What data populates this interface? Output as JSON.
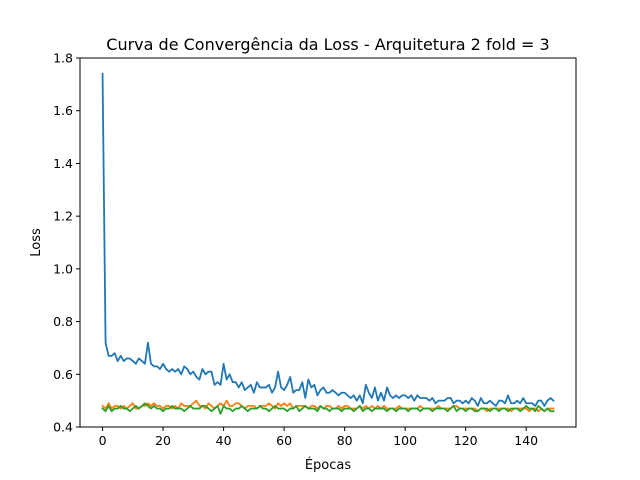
{
  "chart_data": {
    "type": "line",
    "title": "Curva de Convergência da Loss - Arquitetura 2 fold = 3",
    "xlabel": "Épocas",
    "ylabel": "Loss",
    "xlim": [
      -7.45,
      156.45
    ],
    "ylim": [
      0.4,
      1.8
    ],
    "xticks": [
      0,
      20,
      40,
      60,
      80,
      100,
      120,
      140
    ],
    "yticks": [
      0.4,
      0.6,
      0.8,
      1.0,
      1.2,
      1.4,
      1.6,
      1.8
    ],
    "xtick_labels": [
      "0",
      "20",
      "40",
      "60",
      "80",
      "100",
      "120",
      "140"
    ],
    "ytick_labels": [
      "0.4",
      "0.6",
      "0.8",
      "1.0",
      "1.2",
      "1.4",
      "1.6",
      "1.8"
    ],
    "grid": false,
    "legend": "none",
    "series": [
      {
        "color": "#1f77b4",
        "x": [
          0,
          1,
          2,
          3,
          4,
          5,
          6,
          7,
          8,
          9,
          10,
          11,
          12,
          13,
          14,
          15,
          16,
          17,
          18,
          19,
          20,
          21,
          22,
          23,
          24,
          25,
          26,
          27,
          28,
          29,
          30,
          31,
          32,
          33,
          34,
          35,
          36,
          37,
          38,
          39,
          40,
          41,
          42,
          43,
          44,
          45,
          46,
          47,
          48,
          49,
          50,
          51,
          52,
          53,
          54,
          55,
          56,
          57,
          58,
          59,
          60,
          61,
          62,
          63,
          64,
          65,
          66,
          67,
          68,
          69,
          70,
          71,
          72,
          73,
          74,
          75,
          76,
          77,
          78,
          79,
          80,
          81,
          82,
          83,
          84,
          85,
          86,
          87,
          88,
          89,
          90,
          91,
          92,
          93,
          94,
          95,
          96,
          97,
          98,
          99,
          100,
          101,
          102,
          103,
          104,
          105,
          106,
          107,
          108,
          109,
          110,
          111,
          112,
          113,
          114,
          115,
          116,
          117,
          118,
          119,
          120,
          121,
          122,
          123,
          124,
          125,
          126,
          127,
          128,
          129,
          130,
          131,
          132,
          133,
          134,
          135,
          136,
          137,
          138,
          139,
          140,
          141,
          142,
          143,
          144,
          145,
          146,
          147,
          148,
          149
        ],
        "y": [
          1.74,
          0.72,
          0.67,
          0.67,
          0.68,
          0.65,
          0.67,
          0.65,
          0.66,
          0.66,
          0.65,
          0.64,
          0.66,
          0.65,
          0.64,
          0.72,
          0.64,
          0.63,
          0.63,
          0.62,
          0.64,
          0.62,
          0.61,
          0.62,
          0.61,
          0.62,
          0.6,
          0.63,
          0.62,
          0.6,
          0.61,
          0.59,
          0.58,
          0.62,
          0.6,
          0.61,
          0.61,
          0.56,
          0.57,
          0.56,
          0.64,
          0.58,
          0.6,
          0.57,
          0.57,
          0.55,
          0.57,
          0.54,
          0.55,
          0.56,
          0.53,
          0.57,
          0.55,
          0.55,
          0.55,
          0.56,
          0.53,
          0.55,
          0.61,
          0.55,
          0.54,
          0.56,
          0.59,
          0.53,
          0.54,
          0.54,
          0.57,
          0.51,
          0.58,
          0.55,
          0.56,
          0.52,
          0.54,
          0.55,
          0.53,
          0.53,
          0.54,
          0.53,
          0.52,
          0.53,
          0.53,
          0.52,
          0.51,
          0.52,
          0.5,
          0.52,
          0.49,
          0.56,
          0.53,
          0.51,
          0.55,
          0.5,
          0.53,
          0.5,
          0.55,
          0.52,
          0.51,
          0.52,
          0.51,
          0.52,
          0.52,
          0.51,
          0.52,
          0.5,
          0.52,
          0.51,
          0.51,
          0.51,
          0.5,
          0.51,
          0.49,
          0.5,
          0.5,
          0.5,
          0.51,
          0.51,
          0.49,
          0.5,
          0.5,
          0.49,
          0.5,
          0.49,
          0.51,
          0.5,
          0.48,
          0.51,
          0.49,
          0.49,
          0.5,
          0.49,
          0.48,
          0.5,
          0.5,
          0.49,
          0.52,
          0.49,
          0.49,
          0.5,
          0.49,
          0.51,
          0.49,
          0.49,
          0.49,
          0.48,
          0.5,
          0.5,
          0.48,
          0.5,
          0.51,
          0.5
        ]
      },
      {
        "color": "#ff7f0e",
        "x": [
          0,
          1,
          2,
          3,
          4,
          5,
          6,
          7,
          8,
          9,
          10,
          11,
          12,
          13,
          14,
          15,
          16,
          17,
          18,
          19,
          20,
          21,
          22,
          23,
          24,
          25,
          26,
          27,
          28,
          29,
          30,
          31,
          32,
          33,
          34,
          35,
          36,
          37,
          38,
          39,
          40,
          41,
          42,
          43,
          44,
          45,
          46,
          47,
          48,
          49,
          50,
          51,
          52,
          53,
          54,
          55,
          56,
          57,
          58,
          59,
          60,
          61,
          62,
          63,
          64,
          65,
          66,
          67,
          68,
          69,
          70,
          71,
          72,
          73,
          74,
          75,
          76,
          77,
          78,
          79,
          80,
          81,
          82,
          83,
          84,
          85,
          86,
          87,
          88,
          89,
          90,
          91,
          92,
          93,
          94,
          95,
          96,
          97,
          98,
          99,
          100,
          101,
          102,
          103,
          104,
          105,
          106,
          107,
          108,
          109,
          110,
          111,
          112,
          113,
          114,
          115,
          116,
          117,
          118,
          119,
          120,
          121,
          122,
          123,
          124,
          125,
          126,
          127,
          128,
          129,
          130,
          131,
          132,
          133,
          134,
          135,
          136,
          137,
          138,
          139,
          140,
          141,
          142,
          143,
          144,
          145,
          146,
          147,
          148,
          149
        ],
        "y": [
          0.48,
          0.47,
          0.49,
          0.47,
          0.48,
          0.48,
          0.47,
          0.48,
          0.47,
          0.48,
          0.49,
          0.47,
          0.47,
          0.48,
          0.48,
          0.49,
          0.48,
          0.49,
          0.48,
          0.48,
          0.47,
          0.48,
          0.48,
          0.47,
          0.48,
          0.47,
          0.49,
          0.48,
          0.48,
          0.48,
          0.49,
          0.5,
          0.48,
          0.48,
          0.47,
          0.49,
          0.48,
          0.47,
          0.48,
          0.49,
          0.48,
          0.5,
          0.48,
          0.48,
          0.49,
          0.49,
          0.48,
          0.47,
          0.48,
          0.48,
          0.48,
          0.47,
          0.48,
          0.48,
          0.48,
          0.49,
          0.48,
          0.47,
          0.49,
          0.48,
          0.49,
          0.48,
          0.49,
          0.47,
          0.48,
          0.48,
          0.48,
          0.48,
          0.47,
          0.48,
          0.48,
          0.47,
          0.48,
          0.47,
          0.48,
          0.48,
          0.47,
          0.47,
          0.48,
          0.47,
          0.48,
          0.48,
          0.47,
          0.47,
          0.47,
          0.48,
          0.47,
          0.48,
          0.47,
          0.48,
          0.47,
          0.48,
          0.47,
          0.48,
          0.47,
          0.47,
          0.47,
          0.47,
          0.48,
          0.47,
          0.47,
          0.47,
          0.47,
          0.47,
          0.47,
          0.48,
          0.47,
          0.47,
          0.47,
          0.47,
          0.47,
          0.48,
          0.47,
          0.47,
          0.47,
          0.47,
          0.48,
          0.48,
          0.47,
          0.47,
          0.47,
          0.47,
          0.47,
          0.47,
          0.46,
          0.47,
          0.47,
          0.46,
          0.47,
          0.47,
          0.47,
          0.47,
          0.47,
          0.47,
          0.47,
          0.46,
          0.47,
          0.47,
          0.47,
          0.47,
          0.47,
          0.46,
          0.47,
          0.47,
          0.46,
          0.47,
          0.46,
          0.47,
          0.47,
          0.47
        ]
      },
      {
        "color": "#2ca02c",
        "x": [
          0,
          1,
          2,
          3,
          4,
          5,
          6,
          7,
          8,
          9,
          10,
          11,
          12,
          13,
          14,
          15,
          16,
          17,
          18,
          19,
          20,
          21,
          22,
          23,
          24,
          25,
          26,
          27,
          28,
          29,
          30,
          31,
          32,
          33,
          34,
          35,
          36,
          37,
          38,
          39,
          40,
          41,
          42,
          43,
          44,
          45,
          46,
          47,
          48,
          49,
          50,
          51,
          52,
          53,
          54,
          55,
          56,
          57,
          58,
          59,
          60,
          61,
          62,
          63,
          64,
          65,
          66,
          67,
          68,
          69,
          70,
          71,
          72,
          73,
          74,
          75,
          76,
          77,
          78,
          79,
          80,
          81,
          82,
          83,
          84,
          85,
          86,
          87,
          88,
          89,
          90,
          91,
          92,
          93,
          94,
          95,
          96,
          97,
          98,
          99,
          100,
          101,
          102,
          103,
          104,
          105,
          106,
          107,
          108,
          109,
          110,
          111,
          112,
          113,
          114,
          115,
          116,
          117,
          118,
          119,
          120,
          121,
          122,
          123,
          124,
          125,
          126,
          127,
          128,
          129,
          130,
          131,
          132,
          133,
          134,
          135,
          136,
          137,
          138,
          139,
          140,
          141,
          142,
          143,
          144,
          145,
          146,
          147,
          148,
          149
        ],
        "y": [
          0.47,
          0.46,
          0.48,
          0.46,
          0.47,
          0.47,
          0.48,
          0.47,
          0.47,
          0.46,
          0.47,
          0.48,
          0.47,
          0.48,
          0.49,
          0.48,
          0.47,
          0.48,
          0.47,
          0.47,
          0.46,
          0.47,
          0.47,
          0.48,
          0.47,
          0.47,
          0.47,
          0.46,
          0.47,
          0.48,
          0.47,
          0.47,
          0.47,
          0.48,
          0.48,
          0.47,
          0.46,
          0.47,
          0.48,
          0.45,
          0.48,
          0.47,
          0.47,
          0.46,
          0.47,
          0.47,
          0.48,
          0.47,
          0.46,
          0.47,
          0.47,
          0.47,
          0.48,
          0.47,
          0.47,
          0.46,
          0.47,
          0.48,
          0.47,
          0.47,
          0.47,
          0.46,
          0.47,
          0.47,
          0.48,
          0.46,
          0.47,
          0.48,
          0.47,
          0.47,
          0.47,
          0.46,
          0.48,
          0.47,
          0.47,
          0.46,
          0.47,
          0.47,
          0.47,
          0.46,
          0.47,
          0.47,
          0.47,
          0.46,
          0.47,
          0.48,
          0.46,
          0.47,
          0.47,
          0.46,
          0.47,
          0.47,
          0.47,
          0.47,
          0.46,
          0.47,
          0.47,
          0.46,
          0.47,
          0.47,
          0.47,
          0.46,
          0.47,
          0.47,
          0.47,
          0.46,
          0.47,
          0.47,
          0.47,
          0.46,
          0.47,
          0.47,
          0.47,
          0.47,
          0.46,
          0.47,
          0.48,
          0.46,
          0.47,
          0.47,
          0.46,
          0.47,
          0.47,
          0.46,
          0.46,
          0.47,
          0.47,
          0.47,
          0.46,
          0.47,
          0.47,
          0.46,
          0.47,
          0.47,
          0.46,
          0.47,
          0.47,
          0.47,
          0.46,
          0.47,
          0.48,
          0.47,
          0.47,
          0.46,
          0.48,
          0.47,
          0.46,
          0.47,
          0.46,
          0.46
        ]
      }
    ]
  }
}
